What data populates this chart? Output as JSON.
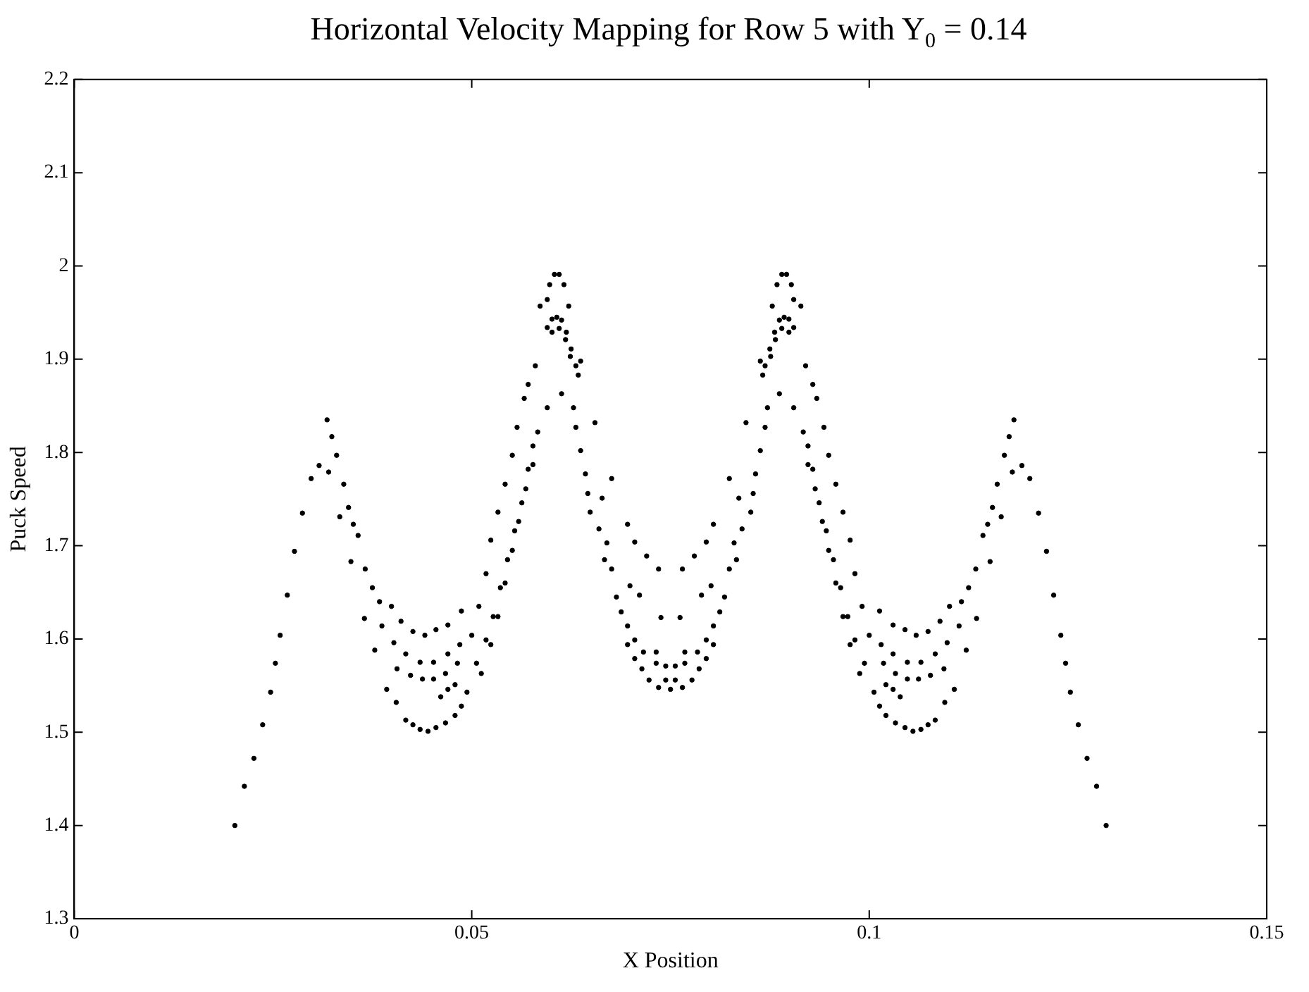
{
  "chart_data": {
    "type": "scatter",
    "title": "Horizontal Velocity Mapping for Row 5 with Y$_{0}$ = 0.14",
    "xlabel": "X Position",
    "ylabel": "Puck Speed",
    "xlim": [
      0,
      0.15
    ],
    "xticks": [
      0,
      0.05,
      0.1,
      0.15
    ],
    "ylim": [
      1.3,
      2.2
    ],
    "yticks": [
      1.3,
      1.4,
      1.5,
      1.6,
      1.7,
      1.8,
      1.9,
      2,
      2.1,
      2.2
    ],
    "grid": false,
    "legend": false,
    "marker": "circle",
    "color": "#000000",
    "x": [
      0.0202,
      0.0214,
      0.0226,
      0.0237,
      0.0247,
      0.0253,
      0.0259,
      0.0268,
      0.0277,
      0.0287,
      0.0298,
      0.0308,
      0.032,
      0.0334,
      0.0348,
      0.0365,
      0.0378,
      0.0393,
      0.0405,
      0.0318,
      0.0324,
      0.033,
      0.0339,
      0.0345,
      0.0351,
      0.0357,
      0.0366,
      0.0375,
      0.0384,
      0.0399,
      0.0411,
      0.0426,
      0.0441,
      0.0455,
      0.047,
      0.0487,
      0.0387,
      0.0402,
      0.0417,
      0.0435,
      0.0452,
      0.047,
      0.0485,
      0.0406,
      0.0423,
      0.0438,
      0.0452,
      0.0467,
      0.0482,
      0.0417,
      0.0426,
      0.0435,
      0.0445,
      0.0455,
      0.0467,
      0.0479,
      0.0487,
      0.0461,
      0.047,
      0.0479,
      0.0494,
      0.0506,
      0.0518,
      0.0527,
      0.0536,
      0.0545,
      0.0554,
      0.0563,
      0.0571,
      0.0577,
      0.0583,
      0.0595,
      0.0613,
      0.05,
      0.0509,
      0.0518,
      0.0524,
      0.0533,
      0.0542,
      0.0551,
      0.0557,
      0.0566,
      0.0571,
      0.058,
      0.0512,
      0.0524,
      0.0533,
      0.0542,
      0.0551,
      0.0559,
      0.0568,
      0.0577,
      0.0595,
      0.0601,
      0.0607,
      0.0613,
      0.0619,
      0.0625,
      0.0631,
      0.0634,
      0.0601,
      0.061,
      0.0618,
      0.0624,
      0.0604,
      0.061,
      0.0598,
      0.0616,
      0.0595,
      0.0622,
      0.0586,
      0.0637,
      0.0628,
      0.0631,
      0.0655,
      0.0637,
      0.0643,
      0.0646,
      0.0649,
      0.0676,
      0.0664,
      0.066,
      0.067,
      0.0667,
      0.0676,
      0.0696,
      0.0705,
      0.072,
      0.0735,
      0.0682,
      0.0688,
      0.0696,
      0.0705,
      0.0716,
      0.0732,
      0.0744,
      0.0699,
      0.0711,
      0.0738,
      0.0714,
      0.0723,
      0.0735,
      0.0696,
      0.0705,
      0.0732,
      0.0744,
      0.1298,
      0.1286,
      0.1274,
      0.1263,
      0.1253,
      0.1247,
      0.1241,
      0.1232,
      0.1223,
      0.1213,
      0.1202,
      0.1192,
      0.118,
      0.1166,
      0.1152,
      0.1135,
      0.1122,
      0.1107,
      0.1095,
      0.1182,
      0.1176,
      0.117,
      0.1161,
      0.1155,
      0.1149,
      0.1143,
      0.1134,
      0.1125,
      0.1116,
      0.1101,
      0.1089,
      0.1074,
      0.1059,
      0.1045,
      0.103,
      0.1013,
      0.1113,
      0.1098,
      0.1083,
      0.1065,
      0.1048,
      0.103,
      0.1015,
      0.1094,
      0.1077,
      0.1062,
      0.1048,
      0.1033,
      0.1018,
      0.1083,
      0.1074,
      0.1065,
      0.1055,
      0.1045,
      0.1033,
      0.1021,
      0.1013,
      0.1039,
      0.103,
      0.1021,
      0.1006,
      0.0994,
      0.0982,
      0.0973,
      0.0964,
      0.0955,
      0.0946,
      0.0937,
      0.0929,
      0.0923,
      0.0917,
      0.0905,
      0.0887,
      0.1,
      0.0991,
      0.0982,
      0.0976,
      0.0967,
      0.0958,
      0.0949,
      0.0943,
      0.0934,
      0.0929,
      0.092,
      0.0988,
      0.0976,
      0.0967,
      0.0958,
      0.0949,
      0.0941,
      0.0932,
      0.0923,
      0.0905,
      0.0899,
      0.0893,
      0.0887,
      0.0881,
      0.0875,
      0.0869,
      0.0866,
      0.0899,
      0.089,
      0.0882,
      0.0876,
      0.0896,
      0.089,
      0.0902,
      0.0884,
      0.0905,
      0.0878,
      0.0914,
      0.0863,
      0.0872,
      0.0869,
      0.0845,
      0.0863,
      0.0857,
      0.0854,
      0.0851,
      0.0824,
      0.0836,
      0.084,
      0.083,
      0.0833,
      0.0824,
      0.0804,
      0.0795,
      0.078,
      0.0765,
      0.0818,
      0.0812,
      0.0804,
      0.0795,
      0.0784,
      0.0768,
      0.0756,
      0.0801,
      0.0789,
      0.0762,
      0.0786,
      0.0777,
      0.0765,
      0.0804,
      0.0795,
      0.0768,
      0.0756,
      0.075
    ],
    "values": [
      1.4,
      1.442,
      1.472,
      1.508,
      1.543,
      1.574,
      1.604,
      1.647,
      1.694,
      1.735,
      1.772,
      1.786,
      1.779,
      1.731,
      1.683,
      1.622,
      1.588,
      1.546,
      1.532,
      1.835,
      1.817,
      1.797,
      1.766,
      1.741,
      1.723,
      1.711,
      1.675,
      1.655,
      1.64,
      1.635,
      1.619,
      1.608,
      1.604,
      1.61,
      1.615,
      1.63,
      1.614,
      1.596,
      1.584,
      1.575,
      1.575,
      1.584,
      1.594,
      1.568,
      1.561,
      1.557,
      1.557,
      1.563,
      1.574,
      1.513,
      1.508,
      1.503,
      1.501,
      1.505,
      1.51,
      1.518,
      1.528,
      1.538,
      1.546,
      1.551,
      1.543,
      1.574,
      1.599,
      1.624,
      1.655,
      1.685,
      1.716,
      1.746,
      1.782,
      1.807,
      1.822,
      1.848,
      1.863,
      1.604,
      1.635,
      1.67,
      1.706,
      1.736,
      1.766,
      1.797,
      1.827,
      1.858,
      1.873,
      1.893,
      1.563,
      1.594,
      1.624,
      1.66,
      1.695,
      1.726,
      1.761,
      1.787,
      1.934,
      1.943,
      1.945,
      1.942,
      1.929,
      1.911,
      1.893,
      1.883,
      1.929,
      1.933,
      1.921,
      1.903,
      1.991,
      1.991,
      1.98,
      1.98,
      1.964,
      1.957,
      1.957,
      1.898,
      1.848,
      1.827,
      1.832,
      1.802,
      1.777,
      1.756,
      1.736,
      1.772,
      1.751,
      1.718,
      1.703,
      1.685,
      1.675,
      1.723,
      1.704,
      1.689,
      1.675,
      1.645,
      1.629,
      1.614,
      1.599,
      1.586,
      1.574,
      1.571,
      1.657,
      1.647,
      1.623,
      1.568,
      1.556,
      1.548,
      1.594,
      1.579,
      1.586,
      1.556,
      1.4,
      1.442,
      1.472,
      1.508,
      1.543,
      1.574,
      1.604,
      1.647,
      1.694,
      1.735,
      1.772,
      1.786,
      1.779,
      1.731,
      1.683,
      1.622,
      1.588,
      1.546,
      1.532,
      1.835,
      1.817,
      1.797,
      1.766,
      1.741,
      1.723,
      1.711,
      1.675,
      1.655,
      1.64,
      1.635,
      1.619,
      1.608,
      1.604,
      1.61,
      1.615,
      1.63,
      1.614,
      1.596,
      1.584,
      1.575,
      1.575,
      1.584,
      1.594,
      1.568,
      1.561,
      1.557,
      1.557,
      1.563,
      1.574,
      1.513,
      1.508,
      1.503,
      1.501,
      1.505,
      1.51,
      1.518,
      1.528,
      1.538,
      1.546,
      1.551,
      1.543,
      1.574,
      1.599,
      1.624,
      1.655,
      1.685,
      1.716,
      1.746,
      1.782,
      1.807,
      1.822,
      1.848,
      1.863,
      1.604,
      1.635,
      1.67,
      1.706,
      1.736,
      1.766,
      1.797,
      1.827,
      1.858,
      1.873,
      1.893,
      1.563,
      1.594,
      1.624,
      1.66,
      1.695,
      1.726,
      1.761,
      1.787,
      1.934,
      1.943,
      1.945,
      1.942,
      1.929,
      1.911,
      1.893,
      1.883,
      1.929,
      1.933,
      1.921,
      1.903,
      1.991,
      1.991,
      1.98,
      1.98,
      1.964,
      1.957,
      1.957,
      1.898,
      1.848,
      1.827,
      1.832,
      1.802,
      1.777,
      1.756,
      1.736,
      1.772,
      1.751,
      1.718,
      1.703,
      1.685,
      1.675,
      1.723,
      1.704,
      1.689,
      1.675,
      1.645,
      1.629,
      1.614,
      1.599,
      1.586,
      1.574,
      1.571,
      1.657,
      1.647,
      1.623,
      1.568,
      1.556,
      1.548,
      1.594,
      1.579,
      1.586,
      1.556,
      1.546
    ]
  }
}
